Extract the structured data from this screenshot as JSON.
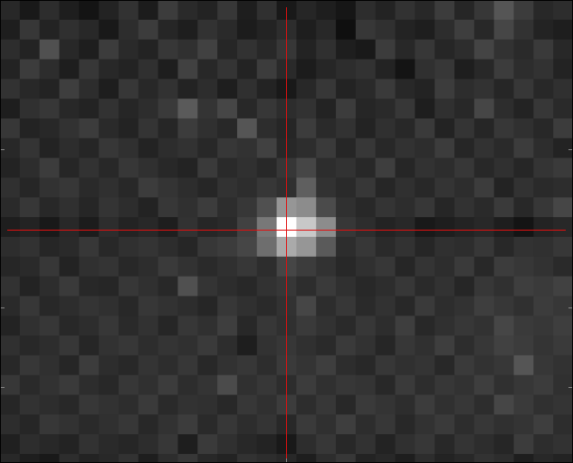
{
  "image": {
    "cells": [
      [
        40,
        25,
        45,
        30,
        20,
        35,
        50,
        28,
        60,
        42,
        35,
        55,
        30,
        48,
        25,
        38,
        30,
        22,
        45,
        35,
        50,
        40,
        60,
        38,
        55,
        85,
        60,
        40,
        45
      ],
      [
        30,
        55,
        35,
        48,
        40,
        25,
        45,
        60,
        38,
        30,
        50,
        42,
        28,
        35,
        45,
        30,
        40,
        15,
        55,
        48,
        35,
        30,
        45,
        62,
        40,
        70,
        50,
        35,
        30
      ],
      [
        45,
        35,
        80,
        40,
        30,
        60,
        42,
        35,
        55,
        48,
        65,
        38,
        50,
        40,
        55,
        35,
        48,
        30,
        25,
        60,
        40,
        55,
        38,
        45,
        68,
        50,
        42,
        58,
        40
      ],
      [
        35,
        60,
        45,
        30,
        55,
        40,
        35,
        48,
        30,
        65,
        40,
        52,
        35,
        60,
        42,
        28,
        38,
        45,
        50,
        35,
        20,
        48,
        55,
        30,
        40,
        60,
        45,
        50,
        35
      ],
      [
        50,
        40,
        35,
        62,
        45,
        30,
        55,
        40,
        50,
        35,
        45,
        30,
        48,
        35,
        25,
        40,
        55,
        35,
        42,
        58,
        40,
        35,
        60,
        45,
        50,
        38,
        55,
        40,
        48
      ],
      [
        30,
        48,
        55,
        40,
        35,
        50,
        38,
        45,
        58,
        90,
        52,
        70,
        40,
        55,
        45,
        50,
        35,
        60,
        38,
        42,
        55,
        30,
        48,
        40,
        70,
        45,
        35,
        55,
        42
      ],
      [
        55,
        35,
        40,
        50,
        60,
        42,
        35,
        52,
        38,
        60,
        48,
        40,
        85,
        45,
        38,
        60,
        42,
        50,
        35,
        48,
        40,
        58,
        35,
        52,
        38,
        55,
        48,
        40,
        60
      ],
      [
        40,
        52,
        35,
        45,
        38,
        55,
        48,
        35,
        45,
        50,
        40,
        55,
        50,
        65,
        40,
        45,
        58,
        38,
        55,
        40,
        50,
        45,
        60,
        38,
        50,
        42,
        60,
        45,
        35
      ],
      [
        35,
        45,
        60,
        38,
        50,
        40,
        55,
        48,
        40,
        35,
        58,
        42,
        48,
        40,
        55,
        70,
        45,
        50,
        40,
        62,
        38,
        50,
        45,
        55,
        40,
        48,
        38,
        52,
        58
      ],
      [
        48,
        38,
        50,
        55,
        42,
        48,
        40,
        60,
        52,
        45,
        38,
        50,
        45,
        55,
        48,
        95,
        50,
        42,
        55,
        38,
        48,
        40,
        52,
        45,
        60,
        35,
        50,
        42,
        45
      ],
      [
        42,
        55,
        40,
        48,
        38,
        52,
        45,
        35,
        55,
        48,
        60,
        45,
        55,
        80,
        150,
        140,
        75,
        48,
        40,
        52,
        45,
        55,
        38,
        50,
        42,
        58,
        40,
        55,
        70
      ],
      [
        30,
        35,
        25,
        40,
        28,
        45,
        35,
        40,
        30,
        50,
        38,
        42,
        65,
        120,
        255,
        200,
        140,
        55,
        45,
        35,
        40,
        25,
        30,
        35,
        40,
        30,
        20,
        35,
        40
      ],
      [
        45,
        50,
        38,
        42,
        55,
        40,
        48,
        52,
        45,
        38,
        55,
        60,
        70,
        110,
        170,
        150,
        90,
        45,
        55,
        42,
        50,
        38,
        48,
        45,
        55,
        40,
        50,
        48,
        55
      ],
      [
        38,
        42,
        55,
        35,
        48,
        52,
        40,
        45,
        58,
        50,
        42,
        48,
        55,
        45,
        70,
        60,
        50,
        40,
        48,
        55,
        38,
        52,
        45,
        58,
        40,
        60,
        55,
        50,
        42
      ],
      [
        50,
        35,
        45,
        58,
        40,
        38,
        55,
        48,
        40,
        80,
        52,
        45,
        40,
        50,
        55,
        45,
        58,
        48,
        40,
        45,
        55,
        42,
        50,
        38,
        55,
        48,
        62,
        58,
        65
      ],
      [
        42,
        55,
        40,
        45,
        52,
        48,
        40,
        55,
        50,
        45,
        38,
        55,
        48,
        42,
        50,
        70,
        45,
        55,
        42,
        50,
        40,
        58,
        45,
        50,
        62,
        55,
        48,
        60,
        55
      ],
      [
        35,
        48,
        55,
        40,
        45,
        55,
        42,
        50,
        38,
        55,
        48,
        62,
        40,
        55,
        48,
        58,
        50,
        42,
        55,
        45,
        62,
        40,
        48,
        55,
        50,
        70,
        58,
        55,
        62
      ],
      [
        48,
        40,
        45,
        55,
        38,
        50,
        55,
        45,
        52,
        48,
        58,
        45,
        30,
        50,
        55,
        48,
        42,
        58,
        50,
        38,
        55,
        48,
        62,
        45,
        55,
        65,
        60,
        52,
        58
      ],
      [
        40,
        55,
        48,
        38,
        60,
        45,
        40,
        52,
        45,
        55,
        40,
        50,
        55,
        45,
        58,
        52,
        62,
        45,
        40,
        55,
        48,
        52,
        40,
        58,
        50,
        55,
        85,
        55,
        50
      ],
      [
        55,
        42,
        50,
        58,
        45,
        40,
        55,
        48,
        60,
        45,
        52,
        75,
        48,
        55,
        45,
        60,
        48,
        55,
        52,
        40,
        58,
        45,
        55,
        50,
        62,
        48,
        55,
        60,
        48
      ],
      [
        38,
        50,
        45,
        40,
        55,
        50,
        45,
        58,
        42,
        50,
        48,
        40,
        55,
        48,
        60,
        45,
        55,
        40,
        58,
        52,
        45,
        60,
        48,
        55,
        45,
        70,
        58,
        48,
        52
      ],
      [
        45,
        38,
        55,
        50,
        42,
        48,
        55,
        40,
        50,
        60,
        42,
        55,
        45,
        52,
        40,
        58,
        48,
        62,
        45,
        55,
        40,
        50,
        58,
        45,
        55,
        48,
        52,
        62,
        45
      ],
      [
        32,
        45,
        40,
        35,
        50,
        42,
        38,
        45,
        55,
        30,
        58,
        48,
        40,
        35,
        25,
        45,
        55,
        40,
        50,
        35,
        48,
        55,
        40,
        52,
        45,
        38,
        60,
        45,
        50
      ],
      [
        40,
        30,
        25,
        45,
        35,
        40,
        50,
        30,
        45,
        55,
        40,
        35,
        50,
        45,
        40,
        30,
        45,
        55,
        35,
        40,
        30,
        45,
        35,
        40,
        50,
        45,
        30,
        40,
        35
      ]
    ]
  }
}
